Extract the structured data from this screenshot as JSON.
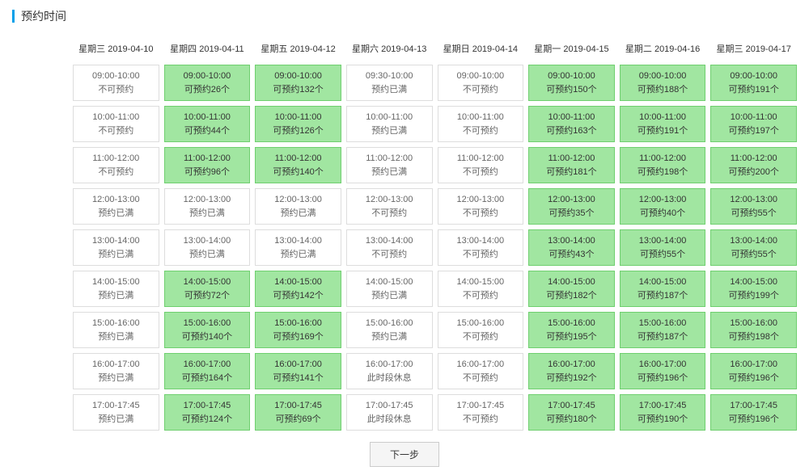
{
  "title": "预约时间",
  "next_button_label": "下一步",
  "palette": {
    "available": {
      "bg": "#a1e6a1",
      "border": "#6fcf6f",
      "text": "#333333"
    },
    "unavailable": {
      "bg": "#ffffff",
      "border": "#dddddd",
      "text": "#666666"
    }
  },
  "days": [
    {
      "header": "星期三 2019-04-10",
      "slots": [
        {
          "time": "09:00-10:00",
          "status": "不可预约",
          "state": "unavailable"
        },
        {
          "time": "10:00-11:00",
          "status": "不可预约",
          "state": "unavailable"
        },
        {
          "time": "11:00-12:00",
          "status": "不可预约",
          "state": "unavailable"
        },
        {
          "time": "12:00-13:00",
          "status": "预约已满",
          "state": "unavailable"
        },
        {
          "time": "13:00-14:00",
          "status": "预约已满",
          "state": "unavailable"
        },
        {
          "time": "14:00-15:00",
          "status": "预约已满",
          "state": "unavailable"
        },
        {
          "time": "15:00-16:00",
          "status": "预约已满",
          "state": "unavailable"
        },
        {
          "time": "16:00-17:00",
          "status": "预约已满",
          "state": "unavailable"
        },
        {
          "time": "17:00-17:45",
          "status": "预约已满",
          "state": "unavailable"
        }
      ]
    },
    {
      "header": "星期四 2019-04-11",
      "slots": [
        {
          "time": "09:00-10:00",
          "status": "可预约26个",
          "state": "available"
        },
        {
          "time": "10:00-11:00",
          "status": "可预约44个",
          "state": "available"
        },
        {
          "time": "11:00-12:00",
          "status": "可预约96个",
          "state": "available"
        },
        {
          "time": "12:00-13:00",
          "status": "预约已满",
          "state": "unavailable"
        },
        {
          "time": "13:00-14:00",
          "status": "预约已满",
          "state": "unavailable"
        },
        {
          "time": "14:00-15:00",
          "status": "可预约72个",
          "state": "available"
        },
        {
          "time": "15:00-16:00",
          "status": "可预约140个",
          "state": "available"
        },
        {
          "time": "16:00-17:00",
          "status": "可预约164个",
          "state": "available"
        },
        {
          "time": "17:00-17:45",
          "status": "可预约124个",
          "state": "available"
        }
      ]
    },
    {
      "header": "星期五 2019-04-12",
      "slots": [
        {
          "time": "09:00-10:00",
          "status": "可预约132个",
          "state": "available"
        },
        {
          "time": "10:00-11:00",
          "status": "可预约126个",
          "state": "available"
        },
        {
          "time": "11:00-12:00",
          "status": "可预约140个",
          "state": "available"
        },
        {
          "time": "12:00-13:00",
          "status": "预约已满",
          "state": "unavailable"
        },
        {
          "time": "13:00-14:00",
          "status": "预约已满",
          "state": "unavailable"
        },
        {
          "time": "14:00-15:00",
          "status": "可预约142个",
          "state": "available"
        },
        {
          "time": "15:00-16:00",
          "status": "可预约169个",
          "state": "available"
        },
        {
          "time": "16:00-17:00",
          "status": "可预约141个",
          "state": "available"
        },
        {
          "time": "17:00-17:45",
          "status": "可预约69个",
          "state": "available"
        }
      ]
    },
    {
      "header": "星期六 2019-04-13",
      "slots": [
        {
          "time": "09:30-10:00",
          "status": "预约已满",
          "state": "unavailable"
        },
        {
          "time": "10:00-11:00",
          "status": "预约已满",
          "state": "unavailable"
        },
        {
          "time": "11:00-12:00",
          "status": "预约已满",
          "state": "unavailable"
        },
        {
          "time": "12:00-13:00",
          "status": "不可预约",
          "state": "unavailable"
        },
        {
          "time": "13:00-14:00",
          "status": "不可预约",
          "state": "unavailable"
        },
        {
          "time": "14:00-15:00",
          "status": "预约已满",
          "state": "unavailable"
        },
        {
          "time": "15:00-16:00",
          "status": "预约已满",
          "state": "unavailable"
        },
        {
          "time": "16:00-17:00",
          "status": "此时段休息",
          "state": "unavailable"
        },
        {
          "time": "17:00-17:45",
          "status": "此时段休息",
          "state": "unavailable"
        }
      ]
    },
    {
      "header": "星期日 2019-04-14",
      "slots": [
        {
          "time": "09:00-10:00",
          "status": "不可预约",
          "state": "unavailable"
        },
        {
          "time": "10:00-11:00",
          "status": "不可预约",
          "state": "unavailable"
        },
        {
          "time": "11:00-12:00",
          "status": "不可预约",
          "state": "unavailable"
        },
        {
          "time": "12:00-13:00",
          "status": "不可预约",
          "state": "unavailable"
        },
        {
          "time": "13:00-14:00",
          "status": "不可预约",
          "state": "unavailable"
        },
        {
          "time": "14:00-15:00",
          "status": "不可预约",
          "state": "unavailable"
        },
        {
          "time": "15:00-16:00",
          "status": "不可预约",
          "state": "unavailable"
        },
        {
          "time": "16:00-17:00",
          "status": "不可预约",
          "state": "unavailable"
        },
        {
          "time": "17:00-17:45",
          "status": "不可预约",
          "state": "unavailable"
        }
      ]
    },
    {
      "header": "星期一 2019-04-15",
      "slots": [
        {
          "time": "09:00-10:00",
          "status": "可预约150个",
          "state": "available"
        },
        {
          "time": "10:00-11:00",
          "status": "可预约163个",
          "state": "available"
        },
        {
          "time": "11:00-12:00",
          "status": "可预约181个",
          "state": "available"
        },
        {
          "time": "12:00-13:00",
          "status": "可预约35个",
          "state": "available"
        },
        {
          "time": "13:00-14:00",
          "status": "可预约43个",
          "state": "available"
        },
        {
          "time": "14:00-15:00",
          "status": "可预约182个",
          "state": "available"
        },
        {
          "time": "15:00-16:00",
          "status": "可预约195个",
          "state": "available"
        },
        {
          "time": "16:00-17:00",
          "status": "可预约192个",
          "state": "available"
        },
        {
          "time": "17:00-17:45",
          "status": "可预约180个",
          "state": "available"
        }
      ]
    },
    {
      "header": "星期二 2019-04-16",
      "slots": [
        {
          "time": "09:00-10:00",
          "status": "可预约188个",
          "state": "available"
        },
        {
          "time": "10:00-11:00",
          "status": "可预约191个",
          "state": "available"
        },
        {
          "time": "11:00-12:00",
          "status": "可预约198个",
          "state": "available"
        },
        {
          "time": "12:00-13:00",
          "status": "可预约40个",
          "state": "available"
        },
        {
          "time": "13:00-14:00",
          "status": "可预约55个",
          "state": "available"
        },
        {
          "time": "14:00-15:00",
          "status": "可预约187个",
          "state": "available"
        },
        {
          "time": "15:00-16:00",
          "status": "可预约187个",
          "state": "available"
        },
        {
          "time": "16:00-17:00",
          "status": "可预约196个",
          "state": "available"
        },
        {
          "time": "17:00-17:45",
          "status": "可预约190个",
          "state": "available"
        }
      ]
    },
    {
      "header": "星期三 2019-04-17",
      "slots": [
        {
          "time": "09:00-10:00",
          "status": "可预约191个",
          "state": "available"
        },
        {
          "time": "10:00-11:00",
          "status": "可预约197个",
          "state": "available"
        },
        {
          "time": "11:00-12:00",
          "status": "可预约200个",
          "state": "available"
        },
        {
          "time": "12:00-13:00",
          "status": "可预约55个",
          "state": "available"
        },
        {
          "time": "13:00-14:00",
          "status": "可预约55个",
          "state": "available"
        },
        {
          "time": "14:00-15:00",
          "status": "可预约199个",
          "state": "available"
        },
        {
          "time": "15:00-16:00",
          "status": "可预约198个",
          "state": "available"
        },
        {
          "time": "16:00-17:00",
          "status": "可预约196个",
          "state": "available"
        },
        {
          "time": "17:00-17:45",
          "status": "可预约196个",
          "state": "available"
        }
      ]
    }
  ]
}
